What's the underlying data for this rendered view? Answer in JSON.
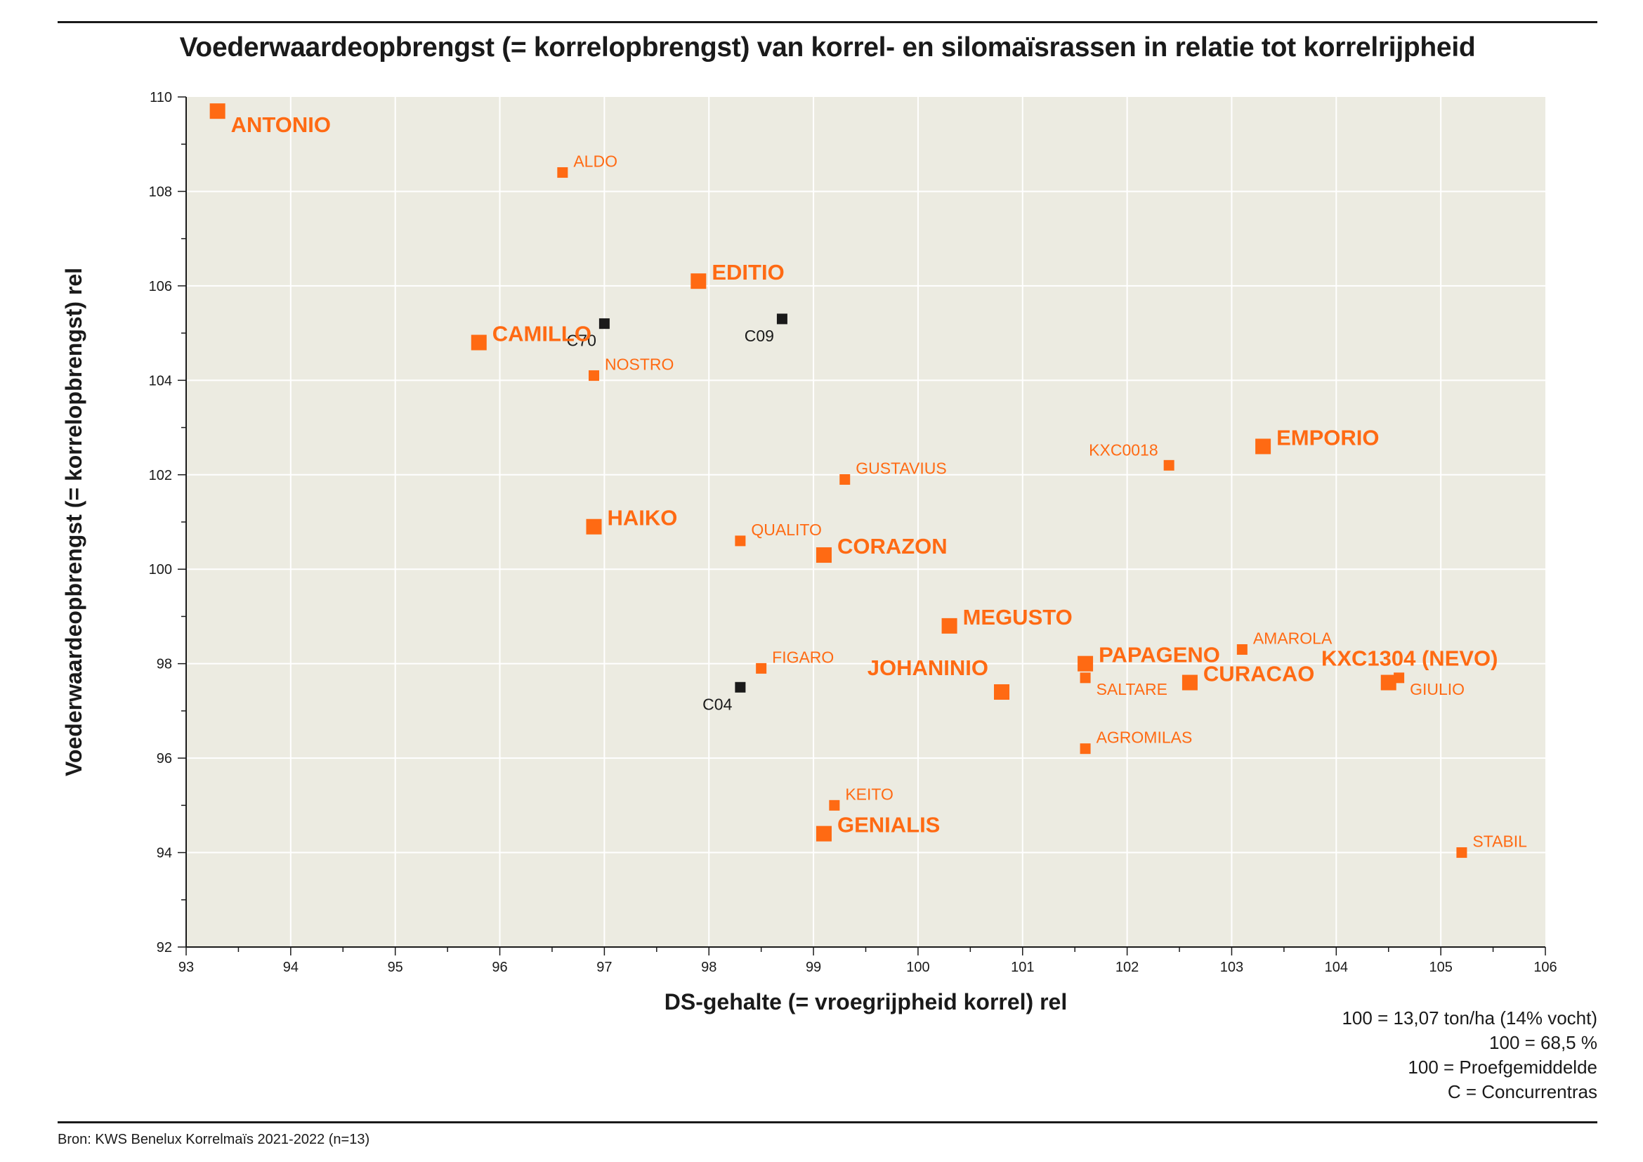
{
  "chart_data": {
    "type": "scatter",
    "title": "Voederwaardeopbrengst (= korrelopbrengst) van korrel- en silomaïsrassen in relatie tot korrelrijpheid",
    "xlabel": "DS-gehalte (= vroegrijpheid korrel) rel",
    "ylabel": "Voederwaardeopbrengst (= korrelopbrengst) rel",
    "xlim": [
      93,
      106
    ],
    "ylim": [
      92,
      110
    ],
    "xticks": [
      "93",
      "94",
      "95",
      "96",
      "97",
      "98",
      "99",
      "100",
      "101",
      "102",
      "103",
      "104",
      "105",
      "106"
    ],
    "yticks": [
      "92",
      "94",
      "96",
      "98",
      "100",
      "102",
      "104",
      "106",
      "108",
      "110"
    ],
    "grid": true,
    "colors": {
      "kws": "#ff6a13",
      "concurrent": "#1a1a1a",
      "plot_bg": "#ecebe1",
      "grid": "#ffffff"
    },
    "points": [
      {
        "label": "ANTONIO",
        "x": 93.3,
        "y": 109.7,
        "group": "kws",
        "size": "large",
        "anchor": "right-below"
      },
      {
        "label": "ALDO",
        "x": 96.6,
        "y": 108.4,
        "group": "kws",
        "size": "small",
        "anchor": "right-above"
      },
      {
        "label": "EDITIO",
        "x": 97.9,
        "y": 106.1,
        "group": "kws",
        "size": "large",
        "anchor": "right-above"
      },
      {
        "label": "C70",
        "x": 97.0,
        "y": 105.2,
        "group": "concurrent",
        "size": "small",
        "anchor": "left-below"
      },
      {
        "label": "C09",
        "x": 98.7,
        "y": 105.3,
        "group": "concurrent",
        "size": "small",
        "anchor": "left-below"
      },
      {
        "label": "CAMILLO",
        "x": 95.8,
        "y": 104.8,
        "group": "kws",
        "size": "large",
        "anchor": "right-above"
      },
      {
        "label": "NOSTRO",
        "x": 96.9,
        "y": 104.1,
        "group": "kws",
        "size": "small",
        "anchor": "right-above"
      },
      {
        "label": "EMPORIO",
        "x": 103.3,
        "y": 102.6,
        "group": "kws",
        "size": "large",
        "anchor": "right-above"
      },
      {
        "label": "KXC0018",
        "x": 102.4,
        "y": 102.2,
        "group": "kws",
        "size": "small",
        "anchor": "left-above"
      },
      {
        "label": "GUSTAVIUS",
        "x": 99.3,
        "y": 101.9,
        "group": "kws",
        "size": "small",
        "anchor": "right-above"
      },
      {
        "label": "HAIKO",
        "x": 96.9,
        "y": 100.9,
        "group": "kws",
        "size": "large",
        "anchor": "right-above"
      },
      {
        "label": "QUALITO",
        "x": 98.3,
        "y": 100.6,
        "group": "kws",
        "size": "small",
        "anchor": "right-above"
      },
      {
        "label": "CORAZON",
        "x": 99.1,
        "y": 100.3,
        "group": "kws",
        "size": "large",
        "anchor": "right-above"
      },
      {
        "label": "MEGUSTO",
        "x": 100.3,
        "y": 98.8,
        "group": "kws",
        "size": "large",
        "anchor": "right-above"
      },
      {
        "label": "FIGARO",
        "x": 98.5,
        "y": 97.9,
        "group": "kws",
        "size": "small",
        "anchor": "right-above"
      },
      {
        "label": "PAPAGENO",
        "x": 101.6,
        "y": 98.0,
        "group": "kws",
        "size": "large",
        "anchor": "right-above"
      },
      {
        "label": "AMAROLA",
        "x": 103.1,
        "y": 98.3,
        "group": "kws",
        "size": "small",
        "anchor": "right-above"
      },
      {
        "label": "SALTARE",
        "x": 101.6,
        "y": 97.7,
        "group": "kws",
        "size": "small",
        "anchor": "right-below"
      },
      {
        "label": "JOHANINIO",
        "x": 100.8,
        "y": 97.4,
        "group": "kws",
        "size": "large",
        "anchor": "left-above"
      },
      {
        "label": "CURACAO",
        "x": 102.6,
        "y": 97.6,
        "group": "kws",
        "size": "large",
        "anchor": "right-above"
      },
      {
        "label": "KXC1304 (NEVO)",
        "x": 104.5,
        "y": 97.6,
        "group": "kws",
        "size": "large",
        "anchor": "center-above"
      },
      {
        "label": "GIULIO",
        "x": 104.6,
        "y": 97.7,
        "group": "kws",
        "size": "small",
        "anchor": "right-below"
      },
      {
        "label": "C04",
        "x": 98.3,
        "y": 97.5,
        "group": "concurrent",
        "size": "small",
        "anchor": "left-below"
      },
      {
        "label": "AGROMILAS",
        "x": 101.6,
        "y": 96.2,
        "group": "kws",
        "size": "small",
        "anchor": "right-above"
      },
      {
        "label": "KEITO",
        "x": 99.2,
        "y": 95.0,
        "group": "kws",
        "size": "small",
        "anchor": "right-above"
      },
      {
        "label": "GENIALIS",
        "x": 99.1,
        "y": 94.4,
        "group": "kws",
        "size": "large",
        "anchor": "right-above"
      },
      {
        "label": "STABIL",
        "x": 105.2,
        "y": 94.0,
        "group": "kws",
        "size": "small",
        "anchor": "right-above"
      }
    ]
  },
  "notes": [
    "100 = 13,07 ton/ha (14% vocht)",
    "100 = 68,5 %",
    "100 = Proefgemiddelde",
    "C = Concurrentras"
  ],
  "source": "Bron: KWS Benelux Korrelmaïs 2021-2022 (n=13)"
}
